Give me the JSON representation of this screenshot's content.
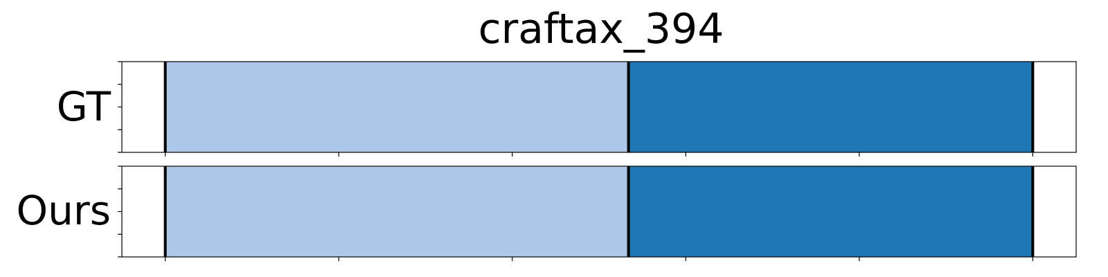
{
  "chart_data": {
    "type": "bar",
    "title": "craftax_394",
    "orientation": "horizontal-stacked",
    "rows": [
      "GT",
      "Ours"
    ],
    "xlim": [
      -0.25,
      5.25
    ],
    "xticks": [
      0,
      1,
      2,
      3,
      4,
      5
    ],
    "y_tick_count": 5,
    "boundary_color": "#000000",
    "panels": [
      {
        "label": "GT",
        "segments": [
          {
            "start": 0,
            "end": 2.67,
            "color": "#aec7e8"
          },
          {
            "start": 2.67,
            "end": 5.0,
            "color": "#1f77b4"
          }
        ]
      },
      {
        "label": "Ours",
        "segments": [
          {
            "start": 0,
            "end": 2.67,
            "color": "#aec7e8"
          },
          {
            "start": 2.67,
            "end": 5.0,
            "color": "#1f77b4"
          }
        ]
      }
    ]
  }
}
